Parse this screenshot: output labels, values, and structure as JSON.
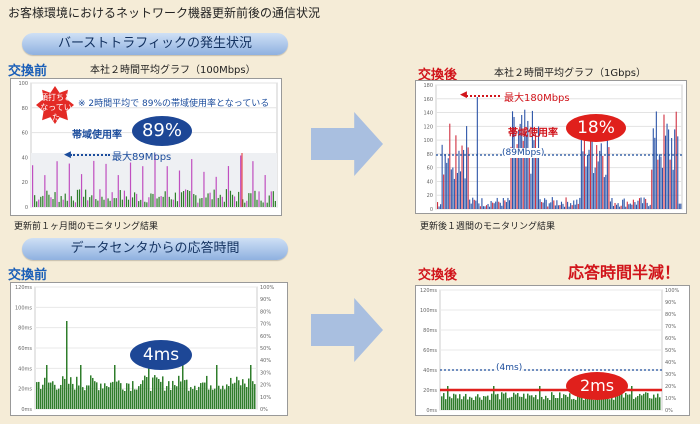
{
  "page_title": "お客様環境におけるネットワーク機器更新前後の通信状況",
  "section1": {
    "banner": "バーストトラフィックの発生状況",
    "before_label": "交換前",
    "before_graph_title": "本社２時間平均グラフ（100Mbps）",
    "after_label": "交換後",
    "after_graph_title": "本社２時間平均グラフ（1Gbps）",
    "callout_red": "頭打ちとなっていた",
    "avg_note": "※ 2時間平均で 89%の帯域使用率となっている",
    "before_usage_label": "帯域使用率",
    "before_usage_value": "89%",
    "before_max": "最大89Mbps",
    "after_max": "最大180Mbps",
    "after_usage_label": "帯域使用率",
    "after_usage_value": "18%",
    "after_ref_line": "(89Mbps)",
    "before_caption": "更新前１ヶ月間のモニタリング結果",
    "after_caption": "更新後１週間のモニタリング結果",
    "before_y_ticks": [
      "100",
      "80",
      "60",
      "40",
      "20",
      "0"
    ],
    "after_y_ticks": [
      "180",
      "160",
      "140",
      "120",
      "100",
      "80",
      "60",
      "40",
      "20",
      "0"
    ]
  },
  "section2": {
    "banner": "データセンタからの応答時間",
    "before_label": "交換前",
    "after_label": "交換後",
    "headline": "応答時間半減！",
    "before_value": "4ms",
    "after_value": "2ms",
    "after_ref_line": "(4ms)",
    "y_ticks": [
      "120ms",
      "100ms",
      "80ms",
      "60ms",
      "40ms",
      "20ms",
      "0ms"
    ],
    "right_ticks": [
      "100%",
      "90%",
      "80%",
      "70%",
      "60%",
      "50%",
      "40%",
      "30%",
      "20%",
      "10%",
      "0%"
    ]
  },
  "colors": {
    "blue": "#1b4c9c",
    "red": "#d1141b",
    "green": "#2f7d2b",
    "arrow": "#a9bfe0"
  }
}
